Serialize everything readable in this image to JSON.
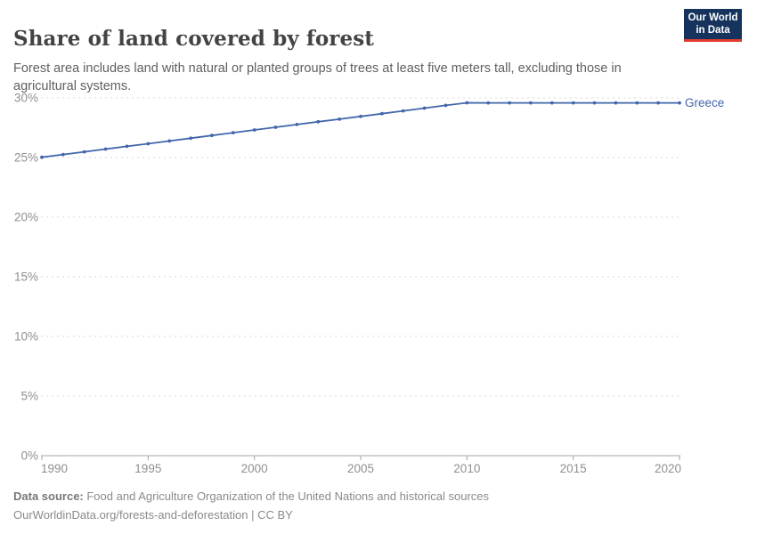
{
  "header": {
    "title": "Share of land covered by forest",
    "subtitle": "Forest area includes land with natural or planted groups of trees at least five meters tall, excluding those in agricultural systems.",
    "logo": {
      "line1": "Our World",
      "line2": "in Data",
      "bg_color": "#15335d",
      "accent_color": "#e03c31"
    }
  },
  "chart_data": {
    "type": "line",
    "title": "Share of land covered by forest",
    "xlabel": "",
    "ylabel": "",
    "x_ticks": [
      1990,
      1995,
      2000,
      2005,
      2010,
      2015,
      2020
    ],
    "y_ticks": [
      0,
      5,
      10,
      15,
      20,
      25,
      30
    ],
    "y_tick_suffix": "%",
    "xlim": [
      1990,
      2020
    ],
    "ylim": [
      0,
      30
    ],
    "grid": "horizontal-dashed",
    "legend_position": "end-of-line",
    "series": [
      {
        "name": "Greece",
        "color": "#4266ab",
        "points": [
          [
            1990,
            25.02
          ],
          [
            1991,
            25.25
          ],
          [
            1992,
            25.48
          ],
          [
            1993,
            25.71
          ],
          [
            1994,
            25.94
          ],
          [
            1995,
            26.16
          ],
          [
            1996,
            26.39
          ],
          [
            1997,
            26.62
          ],
          [
            1998,
            26.85
          ],
          [
            1999,
            27.08
          ],
          [
            2000,
            27.31
          ],
          [
            2001,
            27.54
          ],
          [
            2002,
            27.77
          ],
          [
            2003,
            28.0
          ],
          [
            2004,
            28.22
          ],
          [
            2005,
            28.45
          ],
          [
            2006,
            28.68
          ],
          [
            2007,
            28.91
          ],
          [
            2008,
            29.14
          ],
          [
            2009,
            29.37
          ],
          [
            2010,
            29.59
          ],
          [
            2011,
            29.58
          ],
          [
            2012,
            29.58
          ],
          [
            2013,
            29.58
          ],
          [
            2014,
            29.58
          ],
          [
            2015,
            29.58
          ],
          [
            2016,
            29.58
          ],
          [
            2017,
            29.58
          ],
          [
            2018,
            29.58
          ],
          [
            2019,
            29.58
          ],
          [
            2020,
            29.58
          ]
        ]
      }
    ],
    "colors": {
      "gridline": "#d9d9d9",
      "axis": "#a5a5a5",
      "tick_label": "#8f8f8f"
    }
  },
  "footer": {
    "source_label": "Data source:",
    "source_text": " Food and Agriculture Organization of the United Nations and historical sources",
    "link_line": "OurWorldinData.org/forests-and-deforestation | CC BY"
  }
}
